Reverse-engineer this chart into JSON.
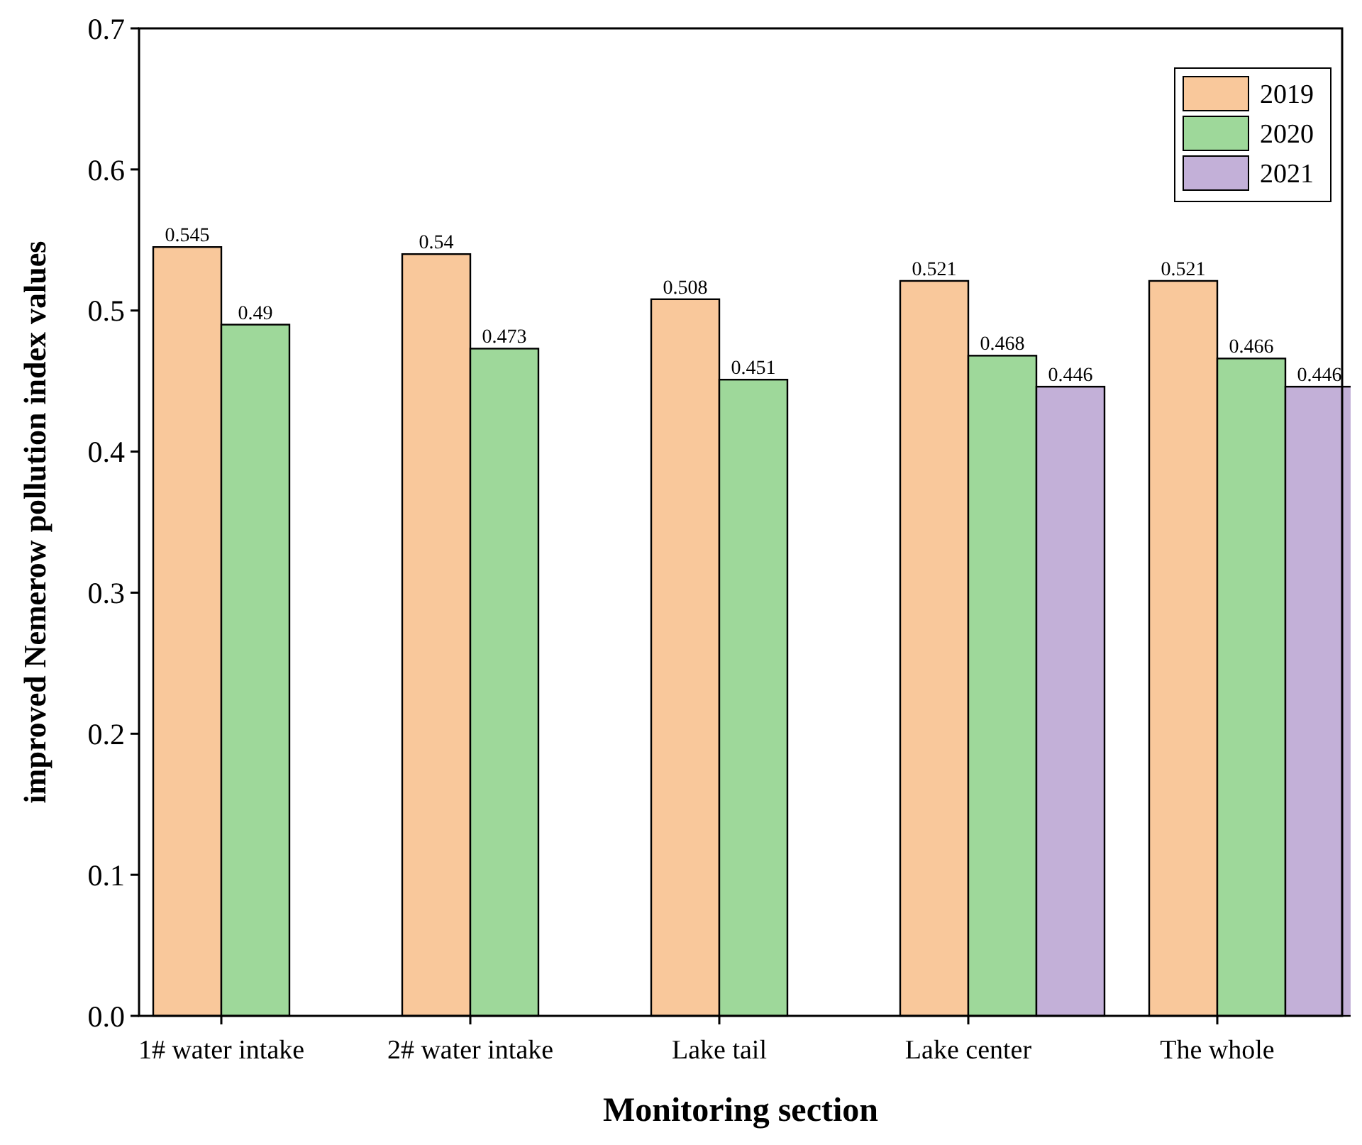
{
  "chart_data": {
    "type": "bar",
    "xlabel": "Monitoring section",
    "ylabel": "improved Nemerow pollution index values",
    "categories": [
      "1# water intake",
      "2# water intake",
      "Lake tail",
      "Lake center",
      "The whole"
    ],
    "series": [
      {
        "name": "2019",
        "color": "#f9c89b",
        "values": [
          0.545,
          0.54,
          0.508,
          0.521,
          0.521
        ]
      },
      {
        "name": "2020",
        "color": "#9ed89a",
        "values": [
          0.49,
          0.473,
          0.451,
          0.468,
          0.466
        ]
      },
      {
        "name": "2021",
        "color": "#c3b0d8",
        "values": [
          null,
          null,
          null,
          0.446,
          0.446
        ]
      }
    ],
    "ylim": [
      0,
      0.7
    ],
    "yticks": [
      {
        "value": 0,
        "label": "0.0"
      },
      0.1,
      0.2,
      0.3,
      0.4,
      0.5,
      0.6,
      0.7
    ],
    "data_labels": true,
    "legend": "top right",
    "grid": false
  }
}
